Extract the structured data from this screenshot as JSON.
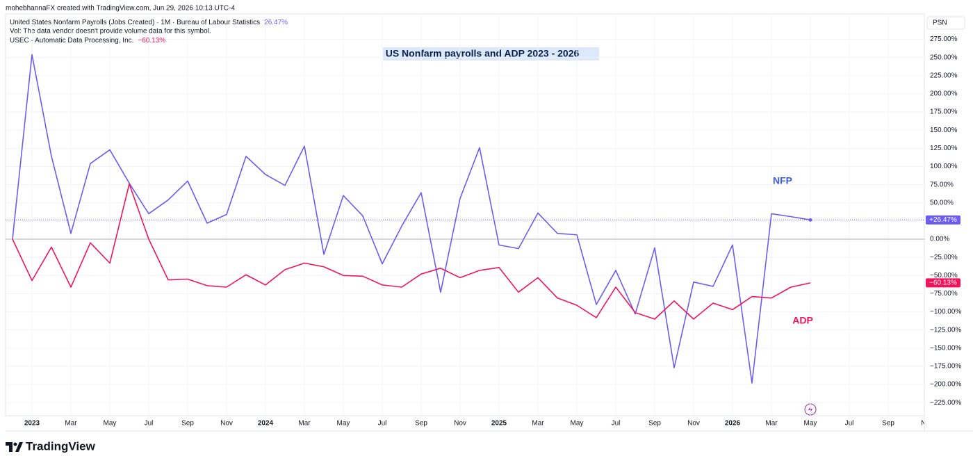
{
  "header": "mohebhannaFX created with TradingView.com, Jun 29, 2026 10:13 UTC-4",
  "volume_note": "Vol: The data vendor doesn't provide volume data for this symbol.",
  "scale_label": "PSN",
  "brand": "TradingView",
  "chart_data": {
    "type": "line",
    "title": "US Nonfarm payrolls and ADP 2023 - 2026",
    "categories": [
      null,
      "2023",
      null,
      "Mar",
      null,
      "May",
      null,
      "Jul",
      null,
      "Sep",
      null,
      "Nov",
      null,
      "2024",
      null,
      "Mar",
      null,
      "May",
      null,
      "Jul",
      null,
      "Sep",
      null,
      "Nov",
      null,
      "2025",
      null,
      "Mar",
      null,
      "May",
      null,
      "Jul",
      null,
      "Sep",
      null,
      "Nov",
      null,
      "2026",
      null,
      "Mar",
      null,
      "May",
      null,
      "Jul",
      null,
      "Sep",
      null,
      "Nov"
    ],
    "series": [
      {
        "name": "United States Nonfarm Payrolls (Jobs Created) · 1M · Bureau of Labour Statistics",
        "color": "#6c5cf2",
        "annotation": "NFP",
        "annotation_color": "#3b5bf0",
        "last_label": "26.47%",
        "tag_label": "+26.47%",
        "values": [
          0,
          254,
          114,
          8,
          104,
          123,
          77,
          35,
          54,
          80,
          22,
          34,
          114,
          89,
          74,
          128,
          -21,
          60,
          32,
          -34,
          18,
          64,
          -73,
          56,
          126,
          -8,
          -13,
          36,
          8,
          6,
          -90,
          -43,
          -103,
          -12,
          -177,
          -59,
          -65,
          -8,
          -198,
          35,
          31,
          26.47,
          null,
          null,
          null,
          null,
          null,
          null
        ]
      },
      {
        "name": "USEC · Automatic Data Processing, Inc.",
        "color": "#f0145a",
        "annotation": "ADP",
        "annotation_color": "#f0145a",
        "last_label": "−60.13%",
        "tag_label": "−60.13%",
        "values": [
          0,
          -57,
          -11,
          -66,
          -5,
          -33,
          76,
          0,
          -56,
          -55,
          -64,
          -66,
          -49,
          -63,
          -42,
          -33,
          -38,
          -50,
          -51,
          -63,
          -66,
          -48,
          -40,
          -53,
          -43,
          -39,
          -73,
          -53,
          -81,
          -91,
          -108,
          -66,
          -101,
          -110,
          -85,
          -110,
          -88,
          -97,
          -79,
          -81,
          -66,
          -60.13,
          null,
          null,
          null,
          null,
          null,
          null
        ]
      }
    ],
    "ylim": [
      -243,
      310
    ],
    "yticks": [
      {
        "value": 275,
        "label": "275.00%"
      },
      {
        "value": 250,
        "label": "250.00%"
      },
      {
        "value": 225,
        "label": "225.00%"
      },
      {
        "value": 200,
        "label": "200.00%"
      },
      {
        "value": 175,
        "label": "175.00%"
      },
      {
        "value": 150,
        "label": "150.00%"
      },
      {
        "value": 125,
        "label": "125.00%"
      },
      {
        "value": 100,
        "label": "100.00%"
      },
      {
        "value": 75,
        "label": "75.00%"
      },
      {
        "value": 50,
        "label": "50.00%"
      },
      {
        "value": 25,
        "label": "25.00%"
      },
      {
        "value": 0,
        "label": "0.00%"
      },
      {
        "value": -25,
        "label": "−25.00%"
      },
      {
        "value": -50,
        "label": "−50.00%"
      },
      {
        "value": -75,
        "label": "−75.00%"
      },
      {
        "value": -100,
        "label": "−100.00%"
      },
      {
        "value": -125,
        "label": "−125.00%"
      },
      {
        "value": -150,
        "label": "−150.00%"
      },
      {
        "value": -175,
        "label": "−175.00%"
      },
      {
        "value": -200,
        "label": "−200.00%"
      },
      {
        "value": -225,
        "label": "−225.00%"
      }
    ],
    "grid": true
  }
}
